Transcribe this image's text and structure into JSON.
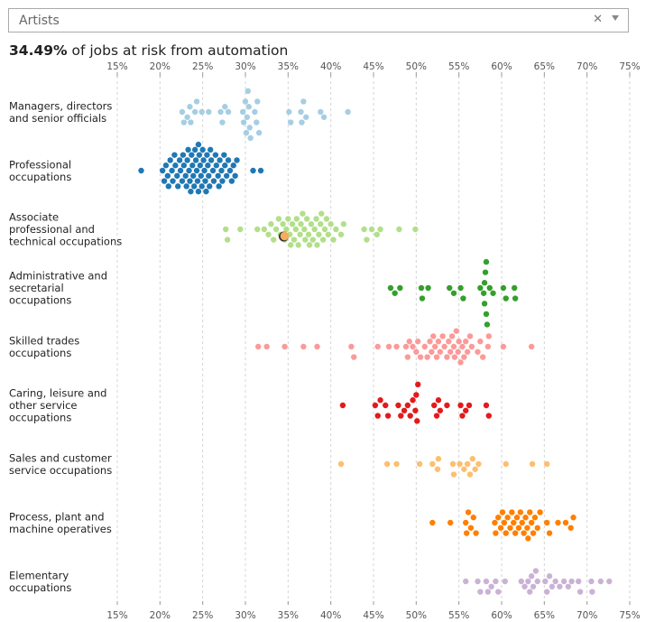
{
  "select": {
    "value": "Artists",
    "clear_icon": "close-icon",
    "dropdown_icon": "chevron-down-icon"
  },
  "headline": {
    "value": "34.49%",
    "text": " of jobs at risk from automation"
  },
  "chart_data": {
    "type": "scatter",
    "subtype": "beeswarm",
    "title": "34.49% of jobs at risk from automation",
    "xlabel": "",
    "ylabel": "",
    "xlim": [
      15,
      75
    ],
    "x_ticks": [
      "15%",
      "20%",
      "25%",
      "30%",
      "35%",
      "40%",
      "45%",
      "50%",
      "55%",
      "60%",
      "65%",
      "70%",
      "75%"
    ],
    "x_tick_values": [
      15,
      20,
      25,
      30,
      35,
      40,
      45,
      50,
      55,
      60,
      65,
      70,
      75
    ],
    "grid": true,
    "highlight": {
      "label": "Artists",
      "category": "Associate professional and technical occupations",
      "value": 34.49,
      "color": "#f5ac5b"
    },
    "series": [
      {
        "name": "Managers, directors and senior officials",
        "label_lines": [
          "Managers, directors",
          "and senior officials"
        ],
        "color": "#a6cee3",
        "values": [
          22.6,
          22.8,
          23.2,
          23.5,
          23.6,
          24.1,
          24.3,
          24.9,
          25.7,
          27.1,
          27.3,
          27.6,
          28.0,
          29.7,
          29.8,
          30.0,
          30.1,
          30.2,
          30.3,
          30.4,
          30.5,
          30.6,
          31.1,
          31.3,
          31.4,
          31.6,
          35.1,
          35.3,
          36.5,
          36.6,
          36.8,
          37.1,
          38.8,
          39.2,
          42.0
        ]
      },
      {
        "name": "Professional occupations",
        "label_lines": [
          "Professional",
          "occupations"
        ],
        "color": "#1f78b4",
        "values": [
          17.8,
          20.3,
          20.5,
          20.7,
          20.9,
          21.0,
          21.2,
          21.4,
          21.5,
          21.7,
          21.8,
          22.0,
          22.1,
          22.3,
          22.4,
          22.6,
          22.7,
          22.8,
          23.0,
          23.1,
          23.2,
          23.3,
          23.4,
          23.5,
          23.6,
          23.7,
          23.8,
          23.9,
          24.0,
          24.1,
          24.2,
          24.3,
          24.4,
          24.5,
          24.5,
          24.6,
          24.7,
          24.8,
          24.9,
          25.0,
          25.1,
          25.2,
          25.3,
          25.4,
          25.5,
          25.6,
          25.7,
          25.8,
          25.9,
          26.0,
          26.2,
          26.3,
          26.5,
          26.6,
          26.8,
          26.9,
          27.0,
          27.2,
          27.3,
          27.5,
          27.6,
          27.8,
          28.0,
          28.2,
          28.4,
          28.6,
          28.8,
          29.0,
          30.9,
          31.8
        ]
      },
      {
        "name": "Associate professional and technical occupations",
        "label_lines": [
          "Associate",
          "professional and",
          "technical occupations"
        ],
        "color": "#b2df8a",
        "values": [
          27.7,
          27.9,
          29.4,
          31.4,
          32.2,
          32.7,
          33.0,
          33.3,
          33.6,
          33.9,
          34.1,
          34.4,
          34.6,
          34.8,
          35.0,
          35.2,
          35.3,
          35.5,
          35.7,
          35.9,
          36.0,
          36.2,
          36.4,
          36.5,
          36.7,
          36.9,
          37.0,
          37.2,
          37.4,
          37.5,
          37.7,
          37.9,
          38.1,
          38.3,
          38.4,
          38.6,
          38.8,
          38.9,
          39.1,
          39.3,
          39.5,
          39.7,
          40.0,
          40.3,
          40.6,
          41.2,
          41.5,
          43.9,
          44.2,
          44.8,
          45.4,
          45.8,
          48.0,
          49.9
        ]
      },
      {
        "name": "Administrative and secretarial occupations",
        "label_lines": [
          "Administrative and",
          "secretarial",
          "occupations"
        ],
        "color": "#33a02c",
        "values": [
          47.0,
          47.5,
          48.1,
          50.6,
          50.7,
          51.4,
          53.9,
          54.4,
          55.2,
          55.5,
          57.5,
          57.9,
          58.0,
          58.0,
          58.1,
          58.2,
          58.2,
          58.3,
          58.6,
          59.0,
          60.2,
          60.5,
          61.5,
          61.6
        ]
      },
      {
        "name": "Skilled trades occupations",
        "label_lines": [
          "Skilled trades",
          "occupations"
        ],
        "color": "#fb9a99",
        "values": [
          31.5,
          32.5,
          34.6,
          36.8,
          38.4,
          42.4,
          42.7,
          45.5,
          46.8,
          47.7,
          48.8,
          49.0,
          49.2,
          49.6,
          50.0,
          50.2,
          50.5,
          51.0,
          51.3,
          51.6,
          51.8,
          52.0,
          52.2,
          52.4,
          52.6,
          52.8,
          53.1,
          53.3,
          53.6,
          53.8,
          54.0,
          54.2,
          54.4,
          54.5,
          54.7,
          54.9,
          55.0,
          55.2,
          55.4,
          55.6,
          55.8,
          56.0,
          56.3,
          56.5,
          57.2,
          57.5,
          57.8,
          58.4,
          58.5,
          60.2,
          63.5
        ]
      },
      {
        "name": "Caring, leisure and other service occupations",
        "label_lines": [
          "Caring, leisure and",
          "other service",
          "occupations"
        ],
        "color": "#e31a1c",
        "values": [
          41.4,
          45.2,
          45.5,
          45.8,
          46.4,
          46.7,
          47.9,
          48.2,
          48.6,
          49.0,
          49.3,
          49.6,
          49.9,
          50.0,
          50.1,
          50.2,
          52.1,
          52.4,
          52.6,
          52.8,
          53.6,
          55.2,
          55.4,
          55.8,
          56.2,
          58.2,
          58.5
        ]
      },
      {
        "name": "Sales and customer service occupations",
        "label_lines": [
          "Sales and customer",
          "service occupations"
        ],
        "color": "#fdbf6f",
        "values": [
          41.2,
          46.6,
          47.7,
          50.4,
          51.9,
          52.5,
          52.6,
          54.3,
          54.4,
          55.1,
          55.6,
          56.0,
          56.3,
          56.6,
          56.9,
          57.3,
          60.5,
          63.6,
          65.3
        ]
      },
      {
        "name": "Process, plant and machine operatives",
        "label_lines": [
          "Process, plant and",
          "machine operatives"
        ],
        "color": "#ff7f00",
        "values": [
          51.9,
          54.0,
          55.8,
          55.9,
          56.1,
          56.4,
          56.7,
          57.0,
          59.2,
          59.3,
          59.6,
          59.9,
          60.1,
          60.3,
          60.5,
          60.7,
          61.0,
          61.2,
          61.4,
          61.6,
          61.8,
          62.0,
          62.2,
          62.4,
          62.6,
          62.8,
          63.0,
          63.1,
          63.3,
          63.5,
          63.7,
          63.9,
          64.2,
          64.5,
          65.3,
          65.6,
          66.6,
          67.5,
          68.1,
          68.4
        ]
      },
      {
        "name": "Elementary occupations",
        "label_lines": [
          "Elementary",
          "occupations"
        ],
        "color": "#cab2d6",
        "values": [
          55.8,
          57.2,
          57.5,
          58.2,
          58.4,
          58.8,
          59.3,
          59.6,
          60.4,
          62.3,
          62.7,
          63.1,
          63.3,
          63.5,
          63.7,
          64.0,
          64.2,
          65.1,
          65.3,
          65.6,
          65.9,
          66.3,
          66.8,
          67.3,
          67.8,
          68.2,
          69.0,
          69.2,
          70.5,
          70.6,
          71.6,
          72.6
        ]
      }
    ]
  }
}
